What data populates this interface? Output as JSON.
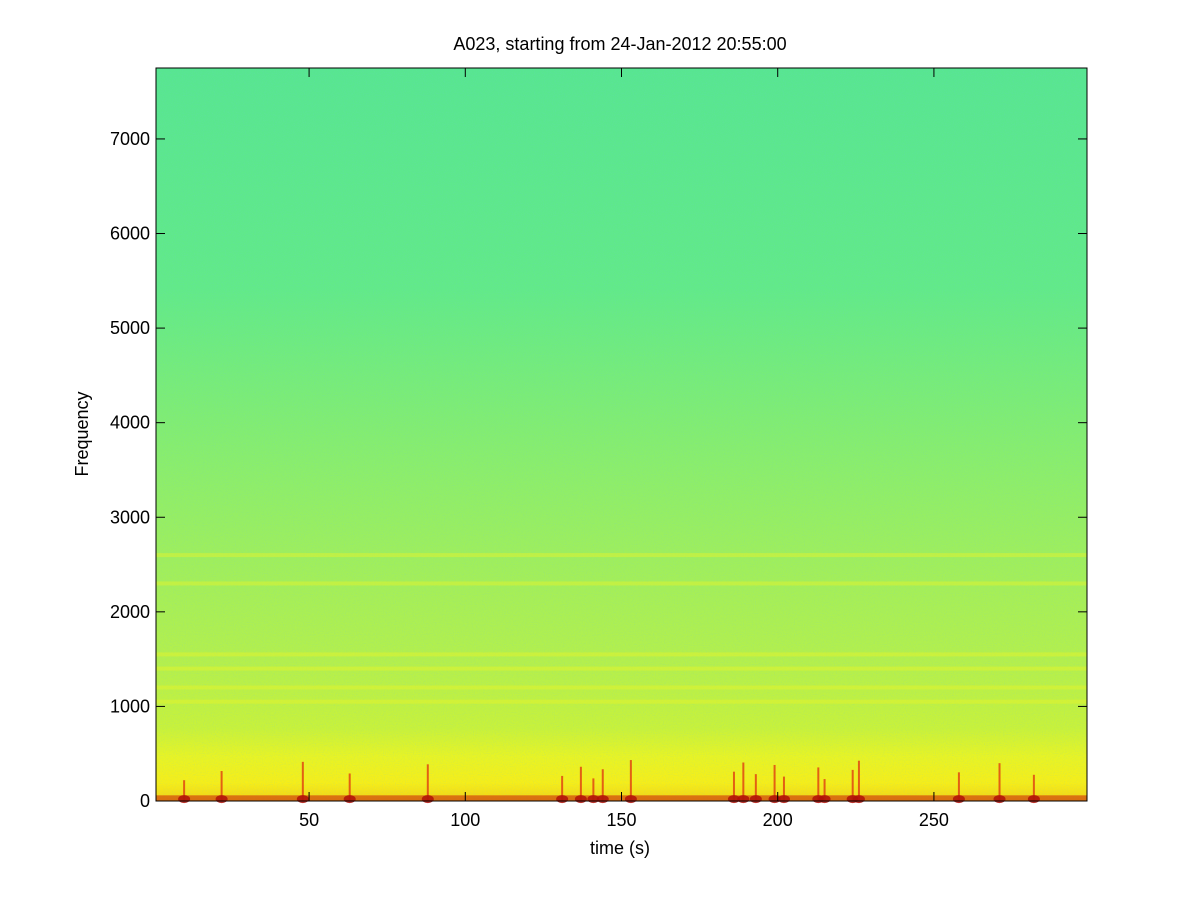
{
  "chart_data": {
    "type": "heatmap",
    "title": "A023, starting from 24-Jan-2012 20:55:00",
    "xlabel": "time (s)",
    "ylabel": "Frequency",
    "xlim": [
      1,
      299
    ],
    "ylim": [
      0,
      7750
    ],
    "xticks": [
      50,
      100,
      150,
      200,
      250
    ],
    "yticks": [
      0,
      1000,
      2000,
      3000,
      4000,
      5000,
      6000,
      7000
    ],
    "grid": false,
    "colormap": "jet",
    "colors": {
      "background_high_freq": "#5ee889",
      "mid_freq": "#b8f04a",
      "low_freq_band": "#f2f21c",
      "intense_low_freq": "#c81e0a"
    },
    "horizontal_bands_hz": [
      1050,
      1200,
      1400,
      1550,
      2300,
      2600
    ],
    "transient_events_s": [
      10,
      22,
      48,
      63,
      88,
      131,
      137,
      141,
      144,
      153,
      186,
      189,
      193,
      199,
      202,
      213,
      215,
      224,
      226,
      258,
      271,
      282
    ]
  }
}
